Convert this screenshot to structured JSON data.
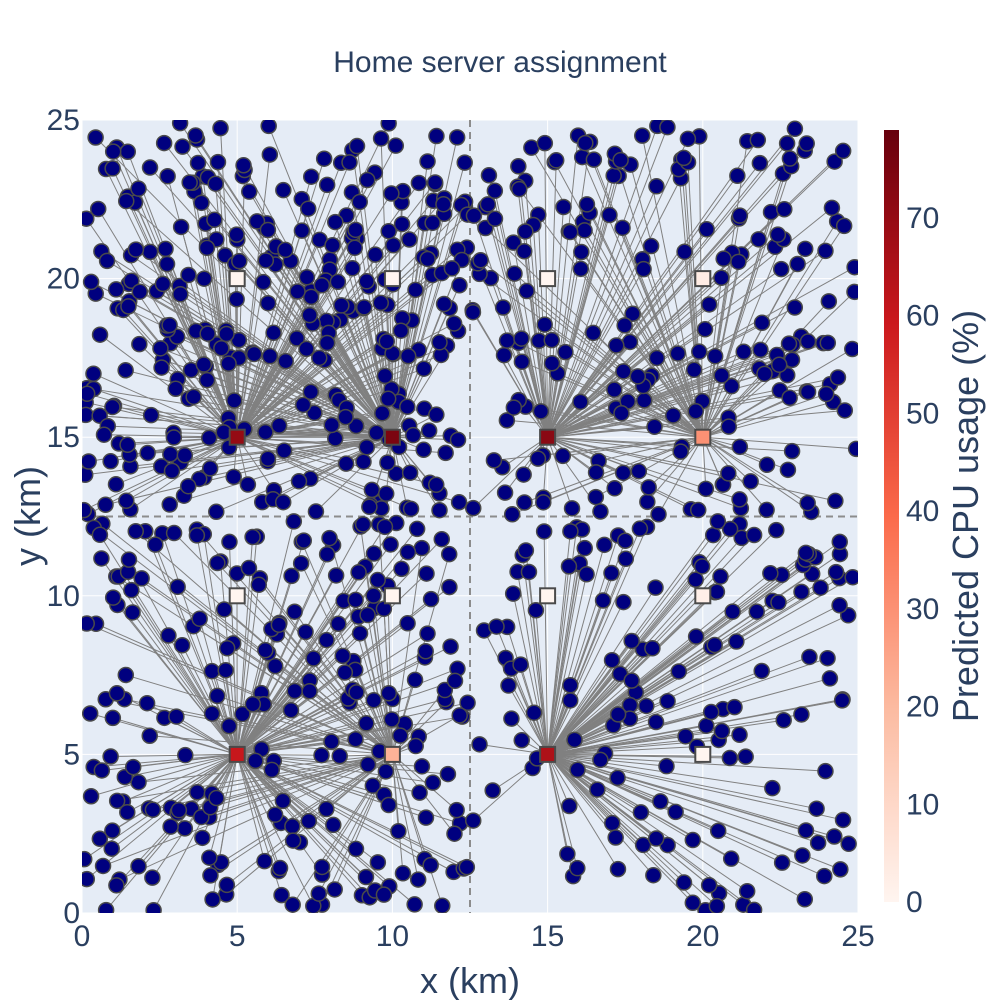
{
  "chart_data": {
    "type": "scatter",
    "title": "Home server assignment",
    "xlabel": "x (km)",
    "ylabel": "y (km)",
    "xlim": [
      0,
      25
    ],
    "ylim": [
      0,
      25
    ],
    "x_ticks": [
      "0",
      "5",
      "10",
      "15",
      "20",
      "25"
    ],
    "y_ticks": [
      "0",
      "5",
      "10",
      "15",
      "20",
      "25"
    ],
    "grid": true,
    "divider_lines": {
      "x": 12.5,
      "y": 12.5,
      "style": "dashed"
    },
    "colorbar": {
      "title": "Predicted CPU usage (%)",
      "range": [
        0,
        79
      ],
      "ticks": [
        "0",
        "10",
        "20",
        "30",
        "40",
        "50",
        "60",
        "70"
      ],
      "colorscale": [
        "#fff5f0",
        "#fcbba1",
        "#fb6a4a",
        "#cb181d",
        "#67000d"
      ]
    },
    "servers": [
      {
        "x": 5,
        "y": 20,
        "cpu": 0
      },
      {
        "x": 10,
        "y": 20,
        "cpu": 0
      },
      {
        "x": 15,
        "y": 20,
        "cpu": 0
      },
      {
        "x": 20,
        "y": 20,
        "cpu": 3
      },
      {
        "x": 5,
        "y": 15,
        "cpu": 70
      },
      {
        "x": 10,
        "y": 15,
        "cpu": 75
      },
      {
        "x": 15,
        "y": 15,
        "cpu": 72
      },
      {
        "x": 20,
        "y": 15,
        "cpu": 30
      },
      {
        "x": 5,
        "y": 10,
        "cpu": 0
      },
      {
        "x": 10,
        "y": 10,
        "cpu": 0
      },
      {
        "x": 15,
        "y": 10,
        "cpu": 0
      },
      {
        "x": 20,
        "y": 10,
        "cpu": 2
      },
      {
        "x": 5,
        "y": 5,
        "cpu": 60
      },
      {
        "x": 10,
        "y": 5,
        "cpu": 22
      },
      {
        "x": 15,
        "y": 5,
        "cpu": 65
      },
      {
        "x": 20,
        "y": 5,
        "cpu": 0
      }
    ],
    "users_note_counts": {
      "top_left": 340,
      "top_right": 220,
      "bottom_left": 250,
      "bottom_right": 160
    },
    "user_color": "#00007f",
    "line_color": "#808080"
  }
}
